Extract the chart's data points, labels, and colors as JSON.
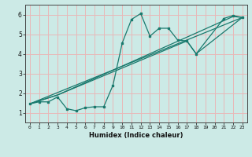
{
  "bg_color": "#cceae6",
  "grid_color": "#e8b8b8",
  "line_color": "#1a7a6e",
  "xlabel": "Humidex (Indice chaleur)",
  "xlim": [
    -0.5,
    23.5
  ],
  "ylim": [
    0.5,
    6.5
  ],
  "xticks": [
    0,
    1,
    2,
    3,
    4,
    5,
    6,
    7,
    8,
    9,
    10,
    11,
    12,
    13,
    14,
    15,
    16,
    17,
    18,
    19,
    20,
    21,
    22,
    23
  ],
  "yticks": [
    1,
    2,
    3,
    4,
    5,
    6
  ],
  "main_x": [
    0,
    1,
    2,
    3,
    4,
    5,
    6,
    7,
    8,
    9,
    10,
    11,
    12,
    13,
    14,
    15,
    16,
    17,
    18,
    21,
    22,
    23
  ],
  "main_y": [
    1.45,
    1.55,
    1.55,
    1.8,
    1.2,
    1.1,
    1.25,
    1.3,
    1.3,
    2.4,
    4.55,
    5.75,
    6.05,
    4.9,
    5.3,
    5.3,
    4.7,
    4.65,
    4.0,
    5.8,
    5.95,
    5.85
  ],
  "line1_x": [
    0,
    3,
    22,
    23
  ],
  "line1_y": [
    1.45,
    1.9,
    5.9,
    5.85
  ],
  "line2_x": [
    0,
    3,
    17,
    18,
    23
  ],
  "line2_y": [
    1.45,
    1.9,
    4.65,
    4.0,
    5.85
  ],
  "line3_x": [
    0,
    23
  ],
  "line3_y": [
    1.45,
    5.85
  ]
}
